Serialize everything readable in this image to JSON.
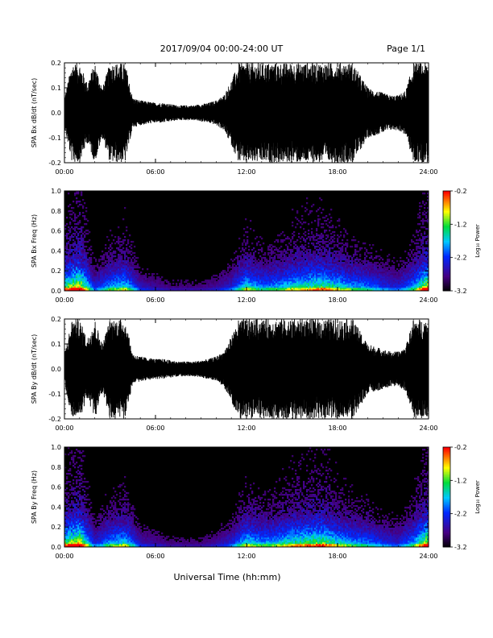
{
  "header": {
    "date_range": "2017/09/04  00:00-24:00 UT",
    "page": "Page 1/1"
  },
  "footer": {
    "xlabel": "Universal Time (hh:mm)"
  },
  "colorbar": {
    "label": "Log₁₀ Power",
    "ticks": [
      "-0.2",
      "-1.2",
      "-2.2",
      "-3.2"
    ],
    "range": [
      -3.2,
      -0.2
    ]
  },
  "chart_data": [
    {
      "type": "line",
      "title": "",
      "xlabel": "",
      "ylabel": "SPA Bx dB/dt (nT/sec)",
      "x_ticks": [
        "00:00",
        "06:00",
        "12:00",
        "18:00",
        "24:00"
      ],
      "y_ticks": [
        "0.2",
        "0.1",
        "0.0",
        "-0.1",
        "-0.2"
      ],
      "xlim": [
        "00:00",
        "24:00"
      ],
      "ylim": [
        -0.2,
        0.2
      ],
      "series": [
        {
          "x_hours": [
            0,
            0.5,
            1,
            1.5,
            2,
            2.5,
            3,
            3.5,
            4,
            4.5,
            5,
            5.5,
            6,
            6.5,
            7,
            7.5,
            8,
            8.5,
            9,
            9.5,
            10,
            10.5,
            11,
            11.5,
            12,
            12.5,
            13,
            13.5,
            14,
            14.5,
            15,
            15.5,
            16,
            16.5,
            17,
            17.5,
            18,
            18.5,
            19,
            19.5,
            20,
            20.5,
            21,
            21.5,
            22,
            22.5,
            23,
            23.5,
            24
          ],
          "amplitude": [
            0.06,
            0.2,
            0.2,
            0.12,
            0.2,
            0.1,
            0.2,
            0.2,
            0.2,
            0.06,
            0.05,
            0.045,
            0.04,
            0.04,
            0.035,
            0.03,
            0.03,
            0.03,
            0.035,
            0.04,
            0.05,
            0.07,
            0.13,
            0.2,
            0.2,
            0.2,
            0.2,
            0.2,
            0.2,
            0.2,
            0.2,
            0.2,
            0.2,
            0.2,
            0.2,
            0.2,
            0.2,
            0.2,
            0.2,
            0.15,
            0.1,
            0.09,
            0.08,
            0.07,
            0.07,
            0.09,
            0.2,
            0.2,
            0.2
          ]
        }
      ]
    },
    {
      "type": "heatmap",
      "title": "",
      "xlabel": "",
      "ylabel": "SPA Bx Freq (Hz)",
      "x_ticks": [
        "00:00",
        "06:00",
        "12:00",
        "18:00",
        "24:00"
      ],
      "y_ticks": [
        "1.0",
        "0.8",
        "0.6",
        "0.4",
        "0.2",
        "0.0"
      ],
      "xlim": [
        "00:00",
        "24:00"
      ],
      "ylim": [
        0.0,
        1.0
      ],
      "z_label": "Log₁₀ Power",
      "zlim": [
        -3.2,
        -0.2
      ],
      "activity_profile": {
        "x_hours": [
          0,
          1,
          2,
          3,
          4,
          5,
          6,
          7,
          8,
          9,
          10,
          11,
          12,
          13,
          14,
          15,
          16,
          17,
          18,
          19,
          20,
          21,
          22,
          23,
          24
        ],
        "relative_activity": [
          0.7,
          0.9,
          0.3,
          0.5,
          0.6,
          0.25,
          0.2,
          0.15,
          0.15,
          0.15,
          0.2,
          0.3,
          0.6,
          0.45,
          0.5,
          0.6,
          0.65,
          0.7,
          0.6,
          0.5,
          0.45,
          0.35,
          0.3,
          0.5,
          0.9
        ]
      }
    },
    {
      "type": "line",
      "title": "",
      "xlabel": "",
      "ylabel": "SPA By dB/dt (nT/sec)",
      "x_ticks": [
        "00:00",
        "06:00",
        "12:00",
        "18:00",
        "24:00"
      ],
      "y_ticks": [
        "0.2",
        "0.1",
        "0.0",
        "-0.1",
        "-0.2"
      ],
      "xlim": [
        "00:00",
        "24:00"
      ],
      "ylim": [
        -0.2,
        0.2
      ],
      "series": [
        {
          "x_hours": [
            0,
            0.5,
            1,
            1.5,
            2,
            2.5,
            3,
            3.5,
            4,
            4.5,
            5,
            5.5,
            6,
            6.5,
            7,
            7.5,
            8,
            8.5,
            9,
            9.5,
            10,
            10.5,
            11,
            11.5,
            12,
            12.5,
            13,
            13.5,
            14,
            14.5,
            15,
            15.5,
            16,
            16.5,
            17,
            17.5,
            18,
            18.5,
            19,
            19.5,
            20,
            20.5,
            21,
            21.5,
            22,
            22.5,
            23,
            23.5,
            24
          ],
          "amplitude": [
            0.06,
            0.2,
            0.2,
            0.12,
            0.2,
            0.1,
            0.2,
            0.2,
            0.2,
            0.06,
            0.05,
            0.045,
            0.04,
            0.04,
            0.035,
            0.03,
            0.03,
            0.03,
            0.035,
            0.04,
            0.05,
            0.07,
            0.13,
            0.2,
            0.2,
            0.2,
            0.2,
            0.2,
            0.2,
            0.2,
            0.2,
            0.2,
            0.2,
            0.2,
            0.2,
            0.2,
            0.2,
            0.2,
            0.2,
            0.15,
            0.1,
            0.09,
            0.08,
            0.07,
            0.07,
            0.09,
            0.2,
            0.2,
            0.2
          ]
        }
      ]
    },
    {
      "type": "heatmap",
      "title": "",
      "xlabel": "Universal Time (hh:mm)",
      "ylabel": "SPA By Freq (Hz)",
      "x_ticks": [
        "00:00",
        "06:00",
        "12:00",
        "18:00",
        "24:00"
      ],
      "y_ticks": [
        "1.0",
        "0.8",
        "0.6",
        "0.4",
        "0.2",
        "0.0"
      ],
      "xlim": [
        "00:00",
        "24:00"
      ],
      "ylim": [
        0.0,
        1.0
      ],
      "z_label": "Log₁₀ Power",
      "zlim": [
        -3.2,
        -0.2
      ],
      "activity_profile": {
        "x_hours": [
          0,
          1,
          2,
          3,
          4,
          5,
          6,
          7,
          8,
          9,
          10,
          11,
          12,
          13,
          14,
          15,
          16,
          17,
          18,
          19,
          20,
          21,
          22,
          23,
          24
        ],
        "relative_activity": [
          0.7,
          0.9,
          0.3,
          0.5,
          0.6,
          0.25,
          0.2,
          0.15,
          0.15,
          0.15,
          0.2,
          0.3,
          0.6,
          0.5,
          0.55,
          0.65,
          0.7,
          0.75,
          0.6,
          0.5,
          0.45,
          0.35,
          0.3,
          0.5,
          0.9
        ]
      }
    }
  ]
}
